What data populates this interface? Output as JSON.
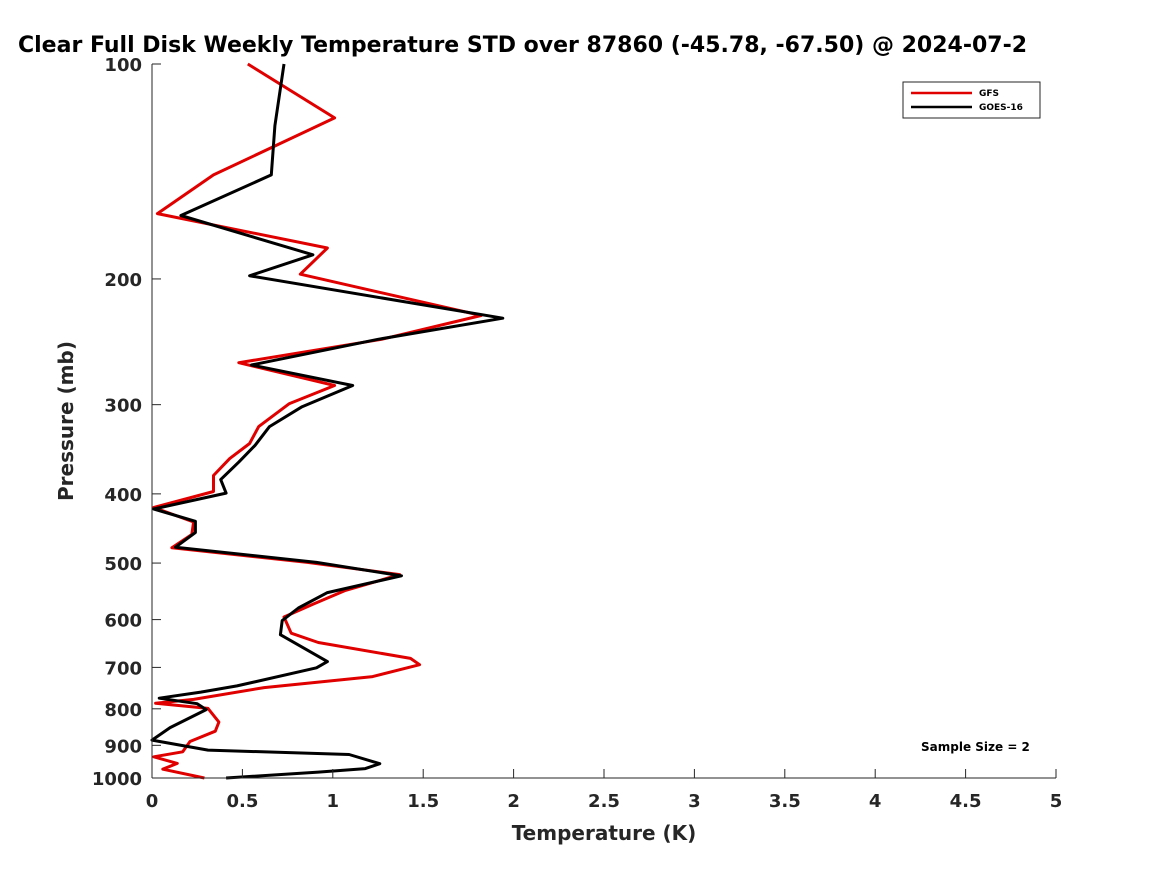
{
  "chart_data": {
    "type": "line",
    "title": "Clear Full Disk Weekly Temperature STD over 87860 (-45.78, -67.50) @ 2024-07-2",
    "xlabel": "Temperature (K)",
    "ylabel": "Pressure (mb)",
    "xlim": [
      0,
      5
    ],
    "ylim": [
      100,
      1000
    ],
    "yscale": "log",
    "y_reversed": true,
    "xticks": [
      0,
      0.5,
      1,
      1.5,
      2,
      2.5,
      3,
      3.5,
      4,
      4.5,
      5
    ],
    "xtick_labels": [
      "0",
      "0.5",
      "1",
      "1.5",
      "2",
      "2.5",
      "3",
      "3.5",
      "4",
      "4.5",
      "5"
    ],
    "yticks": [
      100,
      200,
      300,
      400,
      500,
      600,
      700,
      800,
      900,
      1000
    ],
    "ytick_labels": [
      "100",
      "200",
      "300",
      "400",
      "500",
      "600",
      "700",
      "800",
      "900",
      "1000"
    ],
    "grid": false,
    "legend_position": "top-right",
    "annotation": "Sample Size = 2",
    "series": [
      {
        "name": "GFS",
        "color": "#e00000",
        "points": [
          [
            0.53,
            100
          ],
          [
            1.01,
            119
          ],
          [
            0.34,
            143
          ],
          [
            0.03,
            162
          ],
          [
            0.97,
            181
          ],
          [
            0.82,
            197
          ],
          [
            1.82,
            225
          ],
          [
            1.27,
            243
          ],
          [
            0.48,
            262
          ],
          [
            1.01,
            282
          ],
          [
            0.76,
            299
          ],
          [
            0.59,
            322
          ],
          [
            0.54,
            340
          ],
          [
            0.43,
            357
          ],
          [
            0.34,
            377
          ],
          [
            0.34,
            397
          ],
          [
            0.01,
            418
          ],
          [
            0.23,
            438
          ],
          [
            0.22,
            456
          ],
          [
            0.11,
            476
          ],
          [
            0.86,
            499
          ],
          [
            1.37,
            519
          ],
          [
            1.07,
            546
          ],
          [
            0.89,
            571
          ],
          [
            0.73,
            595
          ],
          [
            0.77,
            627
          ],
          [
            0.92,
            646
          ],
          [
            1.43,
            680
          ],
          [
            1.48,
            694
          ],
          [
            1.22,
            721
          ],
          [
            0.62,
            747
          ],
          [
            0.23,
            776
          ],
          [
            0.02,
            786
          ],
          [
            0.31,
            799
          ],
          [
            0.37,
            835
          ],
          [
            0.35,
            860
          ],
          [
            0.21,
            889
          ],
          [
            0.17,
            919
          ],
          [
            0.01,
            934
          ],
          [
            0.14,
            954
          ],
          [
            0.06,
            972
          ],
          [
            0.29,
            1000
          ]
        ]
      },
      {
        "name": "GOES-16",
        "color": "#000000",
        "points": [
          [
            0.73,
            100
          ],
          [
            0.68,
            122
          ],
          [
            0.66,
            143
          ],
          [
            0.16,
            163
          ],
          [
            0.89,
            185
          ],
          [
            0.54,
            198
          ],
          [
            1.94,
            227
          ],
          [
            1.25,
            243
          ],
          [
            0.55,
            264
          ],
          [
            1.11,
            282
          ],
          [
            0.83,
            302
          ],
          [
            0.65,
            322
          ],
          [
            0.57,
            342
          ],
          [
            0.48,
            361
          ],
          [
            0.38,
            382
          ],
          [
            0.41,
            399
          ],
          [
            0.01,
            420
          ],
          [
            0.24,
            437
          ],
          [
            0.24,
            453
          ],
          [
            0.13,
            475
          ],
          [
            0.91,
            499
          ],
          [
            1.38,
            521
          ],
          [
            0.97,
            550
          ],
          [
            0.81,
            578
          ],
          [
            0.72,
            602
          ],
          [
            0.71,
            630
          ],
          [
            0.97,
            687
          ],
          [
            0.91,
            701
          ],
          [
            0.47,
            743
          ],
          [
            0.27,
            758
          ],
          [
            0.04,
            773
          ],
          [
            0.25,
            787
          ],
          [
            0.3,
            802
          ],
          [
            0.1,
            850
          ],
          [
            0.0,
            885
          ],
          [
            0.31,
            914
          ],
          [
            1.09,
            927
          ],
          [
            1.26,
            955
          ],
          [
            1.18,
            970
          ],
          [
            0.92,
            981
          ],
          [
            0.41,
            1000
          ]
        ]
      }
    ]
  }
}
